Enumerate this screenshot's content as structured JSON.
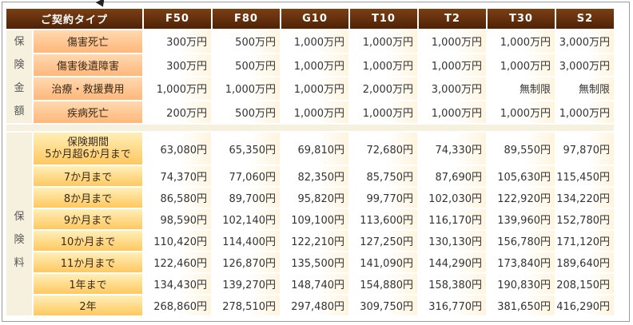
{
  "header": {
    "type_label": "ご契約タイプ",
    "plans": [
      "F50",
      "F80",
      "G10",
      "T10",
      "T2",
      "T30",
      "S2"
    ]
  },
  "coverage": {
    "group_label": [
      "保",
      "険",
      "金",
      "額"
    ],
    "rows": [
      {
        "label": "傷害死亡",
        "values": [
          "300万円",
          "500万円",
          "1,000万円",
          "1,000万円",
          "1,000万円",
          "1,000万円",
          "3,000万円"
        ]
      },
      {
        "label": "傷害後遺障害",
        "values": [
          "300万円",
          "500万円",
          "1,000万円",
          "1,000万円",
          "1,000万円",
          "1,000万円",
          "3,000万円"
        ]
      },
      {
        "label": "治療・救援費用",
        "values": [
          "1,000万円",
          "1,000万円",
          "1,000万円",
          "2,000万円",
          "3,000万円",
          "無制限",
          "無制限"
        ]
      },
      {
        "label": "疾病死亡",
        "values": [
          "200万円",
          "500万円",
          "1,000万円",
          "1,000万円",
          "1,000万円",
          "1,000万円",
          "1,000万円"
        ]
      }
    ]
  },
  "premium": {
    "group_label": [
      "保",
      "険",
      "料"
    ],
    "first_label_line1": "保険期間",
    "first_label_line2": "5か月超6か月まで",
    "first_values": [
      "63,080円",
      "65,350円",
      "69,810円",
      "72,680円",
      "74,330円",
      "89,550円",
      "97,870円"
    ],
    "rows": [
      {
        "label": "7か月まで",
        "values": [
          "74,370円",
          "77,060円",
          "82,350円",
          "85,750円",
          "87,690円",
          "105,630円",
          "115,450円"
        ]
      },
      {
        "label": "8か月まで",
        "values": [
          "86,580円",
          "89,700円",
          "95,820円",
          "99,770円",
          "102,030円",
          "122,920円",
          "134,220円"
        ]
      },
      {
        "label": "9か月まで",
        "values": [
          "98,590円",
          "102,140円",
          "109,100円",
          "113,600円",
          "116,170円",
          "139,960円",
          "152,780円"
        ]
      },
      {
        "label": "10か月まで",
        "values": [
          "110,420円",
          "114,400円",
          "122,210円",
          "127,250円",
          "130,130円",
          "156,780円",
          "171,120円"
        ]
      },
      {
        "label": "11か月まで",
        "values": [
          "122,460円",
          "126,870円",
          "135,500円",
          "141,090円",
          "144,290円",
          "173,840円",
          "189,640円"
        ]
      },
      {
        "label": "1年まで",
        "values": [
          "134,430円",
          "139,270円",
          "148,740円",
          "154,880円",
          "158,380円",
          "190,830円",
          "208,150円"
        ]
      },
      {
        "label": "2年",
        "values": [
          "268,860円",
          "278,510円",
          "297,480円",
          "309,750円",
          "316,770円",
          "381,650円",
          "416,290円"
        ]
      }
    ]
  }
}
